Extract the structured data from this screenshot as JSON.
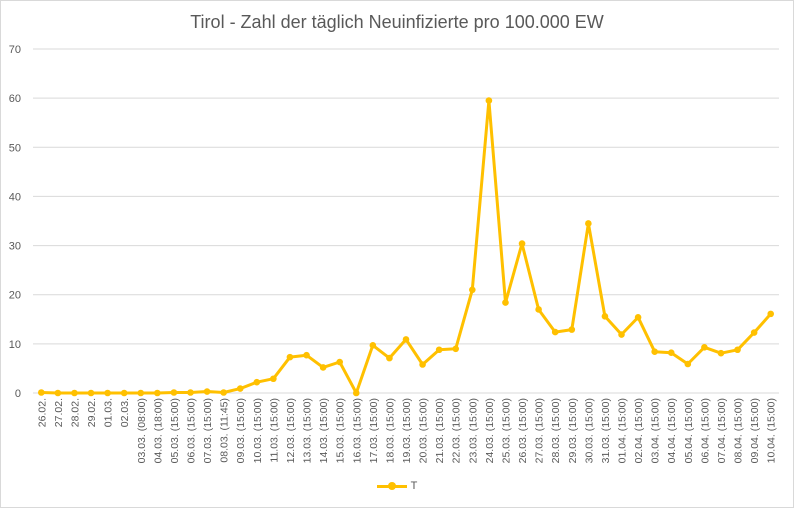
{
  "chart_data": {
    "type": "line",
    "title": "Tirol - Zahl der täglich Neuinfizierte pro 100.000 EW",
    "xlabel": "",
    "ylabel": "",
    "ylim": [
      0,
      70
    ],
    "yticks": [
      0,
      10,
      20,
      30,
      40,
      50,
      60,
      70
    ],
    "grid": true,
    "legend_position": "bottom",
    "color": "#FFC000",
    "categories": [
      "26.02.",
      "27.02.",
      "28.02.",
      "29.02.",
      "01.03.",
      "02.03.",
      "03.03. (08:00)",
      "04.03. (18:00)",
      "05.03. (15:00)",
      "06.03. (15:00)",
      "07.03. (15:00)",
      "08.03. (11:45)",
      "09.03. (15:00)",
      "10.03. (15:00)",
      "11.03. (15:00)",
      "12.03. (15:00)",
      "13.03. (15:00)",
      "14.03. (15:00)",
      "15.03. (15:00)",
      "16.03. (15:00)",
      "17.03. (15:00)",
      "18.03. (15:00)",
      "19.03. (15:00)",
      "20.03. (15:00)",
      "21.03. (15:00)",
      "22.03. (15:00)",
      "23.03. (15:00)",
      "24.03. (15:00)",
      "25.03. (15:00)",
      "26.03. (15:00)",
      "27.03. (15:00)",
      "28.03. (15:00)",
      "29.03. (15:00)",
      "30.03. (15:00)",
      "31.03. (15:00)",
      "01.04. (15:00)",
      "02.04. (15:00)",
      "03.04. (15:00)",
      "04.04. (15:00)",
      "05.04. (15:00)",
      "06.04. (15:00)",
      "07.04. (15:00)",
      "08.04. (15:00)",
      "09.04. (15:00)",
      "10.04. (15:00)"
    ],
    "series": [
      {
        "name": "T",
        "values": [
          0.1,
          0,
          0,
          0,
          0,
          0,
          0,
          0,
          0.1,
          0.1,
          0.3,
          0.1,
          0.9,
          2.2,
          2.9,
          7.3,
          7.7,
          5.2,
          6.3,
          0,
          9.7,
          7.1,
          10.9,
          5.8,
          8.8,
          9.0,
          21.0,
          59.5,
          18.4,
          30.4,
          17.0,
          12.4,
          12.9,
          34.5,
          15.6,
          11.9,
          15.4,
          8.4,
          8.2,
          5.9,
          9.3,
          8.1,
          8.8,
          12.3,
          16.1
        ]
      }
    ]
  }
}
